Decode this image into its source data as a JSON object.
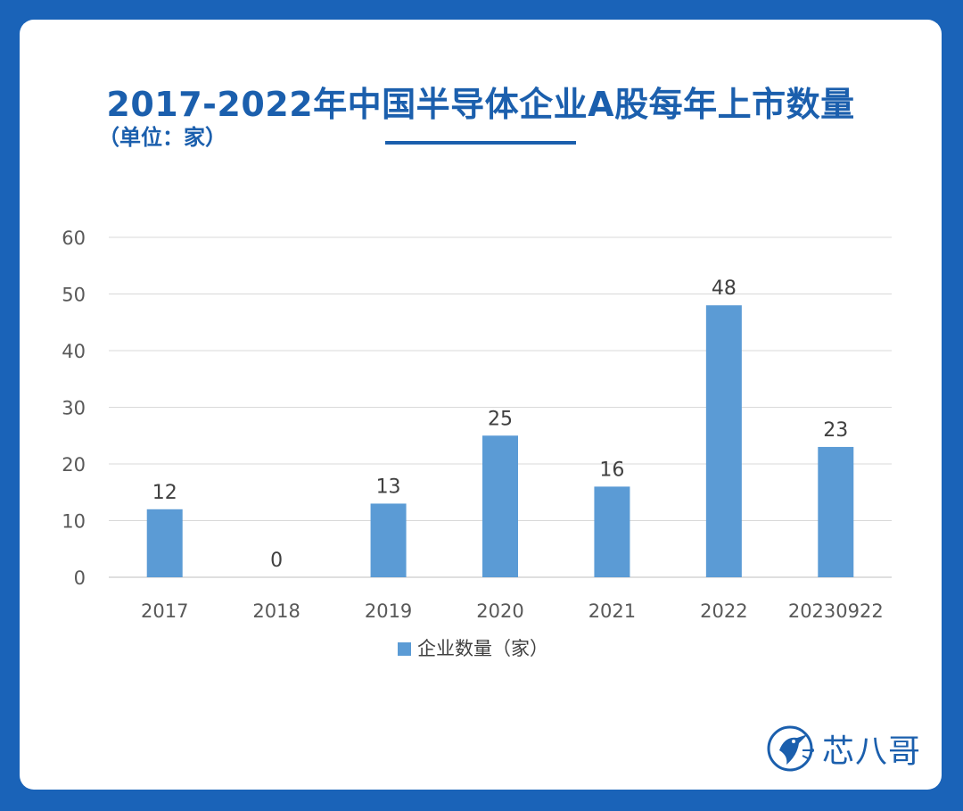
{
  "chart_data": {
    "type": "bar",
    "title": "2017-2022年中国半导体企业A股每年上市数量",
    "subtitle": "（单位：家）",
    "categories": [
      "2017",
      "2018",
      "2019",
      "2020",
      "2021",
      "2022",
      "20230922"
    ],
    "series": [
      {
        "name": "企业数量（家）",
        "values": [
          12,
          0,
          13,
          25,
          16,
          48,
          23
        ]
      }
    ],
    "yticks": [
      0,
      10,
      20,
      30,
      40,
      50,
      60
    ],
    "ylim": [
      0,
      60
    ],
    "grid": true,
    "legend": "bottom-center",
    "data_labels": true,
    "colors": {
      "bar": "#5b9bd5",
      "accent": "#1b5fad",
      "background": "#1a63b8"
    }
  },
  "logo": {
    "text": "芯八哥",
    "icon": "kingfisher-bird-icon"
  }
}
